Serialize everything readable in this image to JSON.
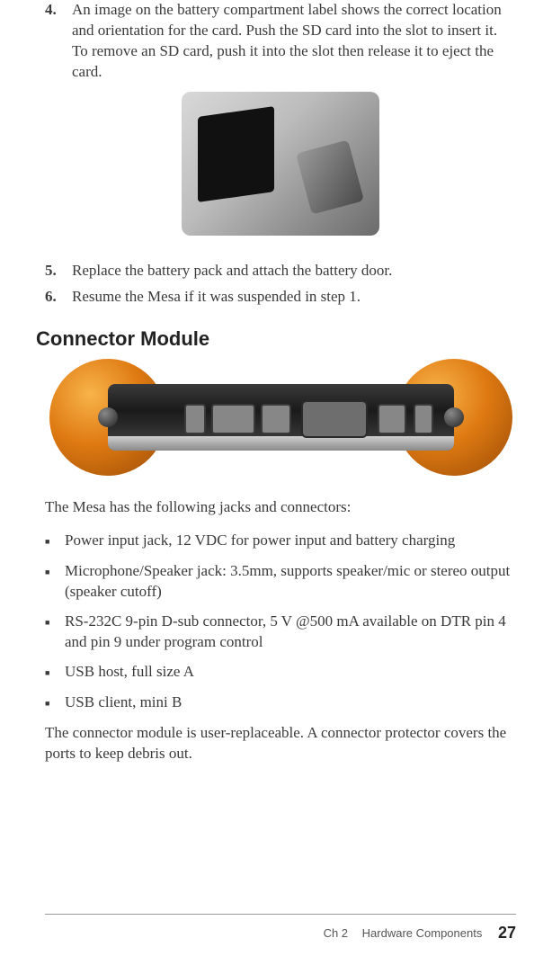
{
  "steps": {
    "s4": {
      "num": "4.",
      "text": "An image on the battery compartment label shows the correct location and orientation for the card. Push the SD card into the slot to insert it. To remove an SD card, push it into the slot then release it to eject the card."
    },
    "s5": {
      "num": "5.",
      "text": "Replace the battery pack and attach the battery door."
    },
    "s6": {
      "num": "6.",
      "text": "Resume the Mesa if it was suspended in step 1."
    }
  },
  "section_title": "Connector Module",
  "lead_in": "The Mesa has the following jacks and connectors:",
  "bullets": {
    "b1": "Power input jack, 12 VDC for power input and battery charging",
    "b2": "Microphone/Speaker jack: 3.5mm, supports speaker/mic or stereo output (speaker cutoff)",
    "b3": "RS-232C 9-pin D-sub connector, 5 V @500 mA available on DTR pin 4 and pin 9 under program control",
    "b4": "USB host, full size A",
    "b5": "USB client, mini B"
  },
  "closing": "The connector module is user-replaceable. A connector protector covers the ports to keep debris out.",
  "footer": {
    "chapter": "Ch 2",
    "section": "Hardware Components",
    "page": "27"
  },
  "figures": {
    "fig1": {
      "alt": "SD card slot in battery compartment",
      "colors": {
        "light": "#d8d8d8",
        "dark": "#6b6b6b",
        "label": "#111111"
      }
    },
    "fig2": {
      "alt": "Mesa connector module with ports",
      "colors": {
        "orange_light": "#f7b44a",
        "orange_dark": "#9a4b06",
        "body": "#1a1a1a",
        "metal": "#cfcfcf"
      }
    }
  }
}
